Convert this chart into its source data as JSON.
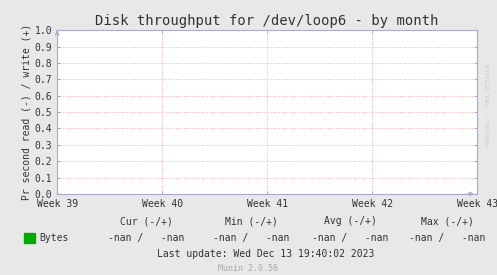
{
  "title": "Disk throughput for /dev/loop6 - by month",
  "ylabel": "Pr second read (-) / write (+)",
  "xlim": [
    0,
    1
  ],
  "ylim": [
    0.0,
    1.0
  ],
  "yticks": [
    0.0,
    0.1,
    0.2,
    0.3,
    0.4,
    0.5,
    0.6,
    0.7,
    0.8,
    0.9,
    1.0
  ],
  "xtick_labels": [
    "Week 39",
    "Week 40",
    "Week 41",
    "Week 42",
    "Week 43"
  ],
  "xtick_positions": [
    0.0,
    0.25,
    0.5,
    0.75,
    1.0
  ],
  "background_color": "#e8e8e8",
  "plot_bg_color": "#ffffff",
  "grid_color": "#ffaaaa",
  "grid_style": ":",
  "title_fontsize": 10,
  "axis_label_fontsize": 7,
  "tick_fontsize": 7,
  "legend_label": "Bytes",
  "legend_color": "#00aa00",
  "cur_label": "Cur (-/+)",
  "min_label": "Min (-/+)",
  "avg_label": "Avg (-/+)",
  "max_label": "Max (-/+)",
  "nan_val": "-nan /   -nan",
  "last_update": "Last update: Wed Dec 13 19:40:02 2023",
  "munin_version": "Munin 2.0.56",
  "watermark": "RRDTOOL / TOBI OETIKER",
  "spine_color": "#aaaacc",
  "text_color": "#333333",
  "watermark_color": "#cccccc",
  "munin_color": "#aaaaaa"
}
